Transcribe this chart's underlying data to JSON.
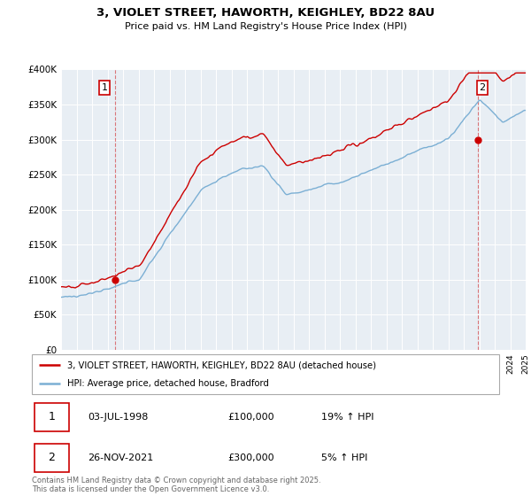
{
  "title_line1": "3, VIOLET STREET, HAWORTH, KEIGHLEY, BD22 8AU",
  "title_line2": "Price paid vs. HM Land Registry's House Price Index (HPI)",
  "legend_line1": "3, VIOLET STREET, HAWORTH, KEIGHLEY, BD22 8AU (detached house)",
  "legend_line2": "HPI: Average price, detached house, Bradford",
  "transaction1_label": "1",
  "transaction1_date": "03-JUL-1998",
  "transaction1_price": "£100,000",
  "transaction1_hpi": "19% ↑ HPI",
  "transaction2_label": "2",
  "transaction2_date": "26-NOV-2021",
  "transaction2_price": "£300,000",
  "transaction2_hpi": "5% ↑ HPI",
  "footer": "Contains HM Land Registry data © Crown copyright and database right 2025.\nThis data is licensed under the Open Government Licence v3.0.",
  "red_color": "#cc0000",
  "blue_color": "#7bafd4",
  "chart_bg": "#e8eef4",
  "ylim_min": 0,
  "ylim_max": 400000,
  "year_start": 1995,
  "year_end": 2025,
  "marker1_year": 1998.5,
  "marker1_value": 100000,
  "marker2_year": 2021.9,
  "marker2_value": 300000
}
